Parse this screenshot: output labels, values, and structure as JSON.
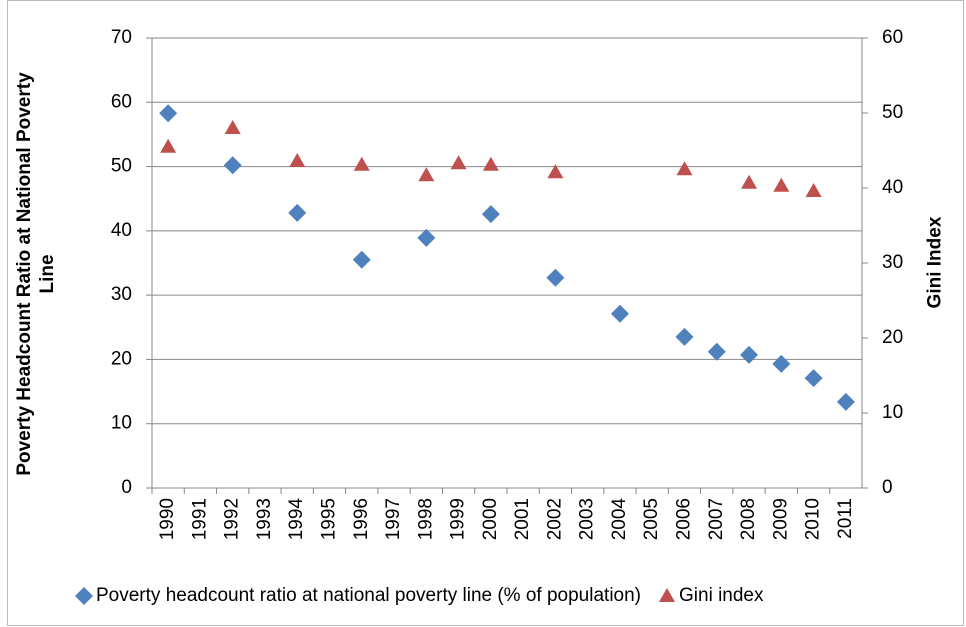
{
  "chart_data": {
    "type": "scatter",
    "y_label": "Poverty Headcount Ratio at National Poverty Line",
    "y2_label": "Gini Index",
    "categories": [
      "1990",
      "1991",
      "1992",
      "1993",
      "1994",
      "1995",
      "1996",
      "1997",
      "1998",
      "1999",
      "2000",
      "2001",
      "2002",
      "2003",
      "2004",
      "2005",
      "2006",
      "2007",
      "2008",
      "2009",
      "2010",
      "2011"
    ],
    "series": [
      {
        "name": "Poverty headcount ratio at national poverty line (% of population)",
        "color": "#4f81bd",
        "marker": "diamond",
        "values": [
          58.3,
          null,
          50.2,
          null,
          42.8,
          null,
          35.5,
          null,
          38.9,
          null,
          42.6,
          null,
          32.7,
          null,
          27.1,
          null,
          23.5,
          21.2,
          20.7,
          19.3,
          17.1,
          13.4
        ]
      },
      {
        "name": "Gini index",
        "color": "#c0504d",
        "marker": "triangle",
        "axis": "y2",
        "values": [
          45.5,
          null,
          48.0,
          null,
          43.6,
          null,
          43.1,
          null,
          41.7,
          43.3,
          43.1,
          null,
          42.1,
          null,
          null,
          null,
          42.5,
          null,
          40.7,
          40.3,
          39.6,
          null
        ]
      }
    ],
    "ylim": [
      0,
      70
    ],
    "yticks": [
      0,
      10,
      20,
      30,
      40,
      50,
      60,
      70
    ],
    "y2lim": [
      0,
      60
    ],
    "y2ticks": [
      0,
      10,
      20,
      30,
      40,
      50,
      60
    ],
    "grid": true,
    "legend": "bottom"
  }
}
